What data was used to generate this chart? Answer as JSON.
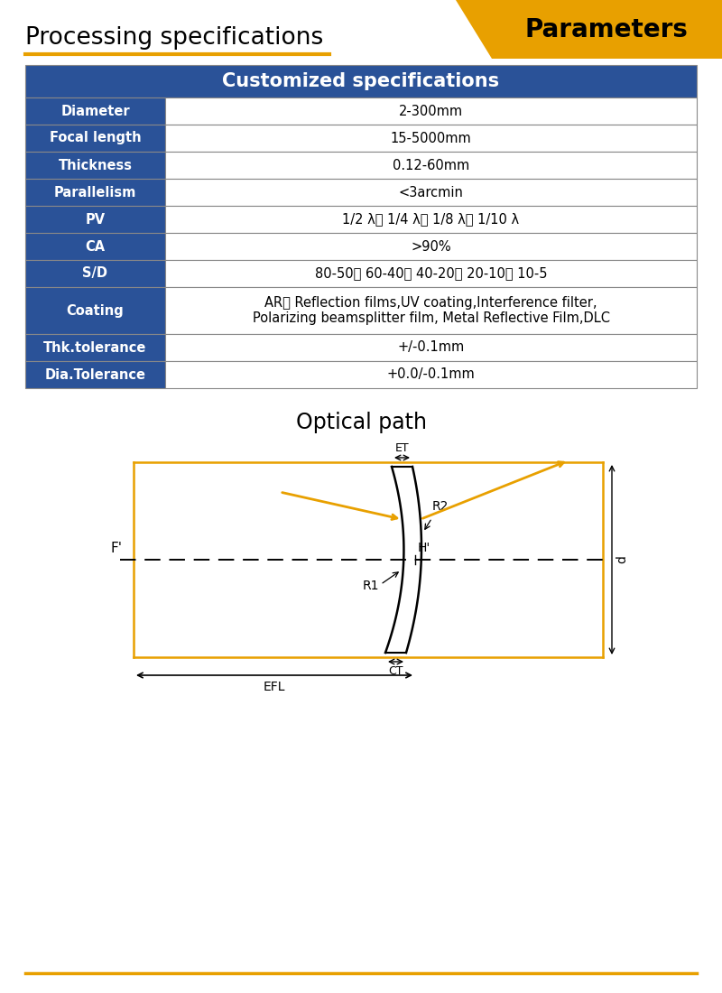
{
  "title_left": "Processing specifications",
  "title_right": "Parameters",
  "title_right_bg": "#E8A000",
  "title_underline_color": "#E8A000",
  "table_header_text": "Customized specifications",
  "table_header_bg": "#2A5298",
  "table_header_text_color": "#FFFFFF",
  "table_row_bg1": "#2A5298",
  "table_row_bg2": "#FFFFFF",
  "table_text_color_left": "#FFFFFF",
  "table_text_color_right": "#000000",
  "table_border_color": "#888888",
  "rows": [
    [
      "Diameter",
      "2-300mm"
    ],
    [
      "Focal length",
      "15-5000mm"
    ],
    [
      "Thickness",
      "0.12-60mm"
    ],
    [
      "Parallelism",
      "<3arcmin"
    ],
    [
      "PV",
      "1/2 λ、 1/4 λ、 1/8 λ、 1/10 λ"
    ],
    [
      "CA",
      ">90%"
    ],
    [
      "S/D",
      "80-50、 60-40、 40-20、 20-10、 10-5"
    ],
    [
      "Coating",
      "AR、 Reflection films,UV coating,Interference filter,\nPolarizing beamsplitter film, Metal Reflective Film,DLC"
    ],
    [
      "Thk.tolerance",
      "+/-0.1mm"
    ],
    [
      "Dia.Tolerance",
      "+0.0/-0.1mm"
    ]
  ],
  "optical_path_title": "Optical path",
  "gold_color": "#E8A000",
  "dark_color": "#222222",
  "footer_line_color": "#E8A000",
  "bg_color": "#FFFFFF"
}
